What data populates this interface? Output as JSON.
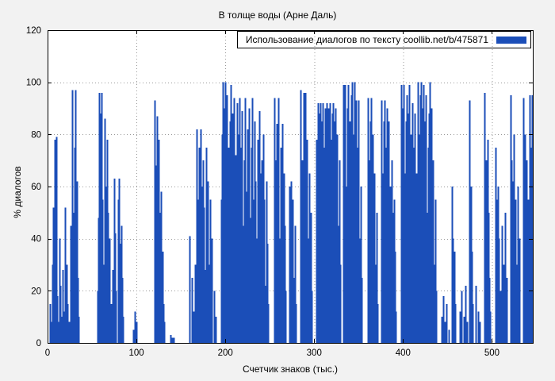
{
  "chart_data": {
    "type": "bar",
    "title": "В толще воды (Арне Даль)",
    "xlabel": "Счетчик знаков (тыс.)",
    "ylabel": "% диалогов",
    "legend": {
      "label": "Использование диалогов по тексту  coollib.net/b/475871",
      "position": "top-right"
    },
    "xlim": [
      0,
      546
    ],
    "ylim": [
      0,
      120
    ],
    "xticks": [
      0,
      100,
      200,
      300,
      400,
      500
    ],
    "yticks": [
      0,
      20,
      40,
      60,
      80,
      100,
      120
    ],
    "grid": true,
    "colors": {
      "bar": "#1b4eb8",
      "grid": "#999999",
      "background": "#f2f2f2",
      "plot_background": "#ffffff",
      "border": "#000000"
    },
    "points": [
      [
        3,
        15
      ],
      [
        4,
        8
      ],
      [
        5,
        30
      ],
      [
        6,
        52
      ],
      [
        7,
        20
      ],
      [
        8,
        78
      ],
      [
        9,
        35
      ],
      [
        10,
        79
      ],
      [
        11,
        18
      ],
      [
        12,
        8
      ],
      [
        13,
        40
      ],
      [
        14,
        22
      ],
      [
        15,
        10
      ],
      [
        17,
        28
      ],
      [
        19,
        12
      ],
      [
        20,
        52
      ],
      [
        21,
        30
      ],
      [
        22,
        15
      ],
      [
        24,
        8
      ],
      [
        26,
        45
      ],
      [
        27,
        20
      ],
      [
        28,
        97
      ],
      [
        29,
        50
      ],
      [
        30,
        75
      ],
      [
        31,
        97
      ],
      [
        32,
        40
      ],
      [
        33,
        62
      ],
      [
        34,
        25
      ],
      [
        35,
        10
      ],
      [
        56,
        20
      ],
      [
        57,
        48
      ],
      [
        58,
        96
      ],
      [
        59,
        70
      ],
      [
        60,
        88
      ],
      [
        61,
        96
      ],
      [
        62,
        55
      ],
      [
        63,
        30
      ],
      [
        64,
        86
      ],
      [
        65,
        60
      ],
      [
        66,
        35
      ],
      [
        67,
        78
      ],
      [
        68,
        50
      ],
      [
        69,
        22
      ],
      [
        70,
        40
      ],
      [
        71,
        15
      ],
      [
        73,
        28
      ],
      [
        75,
        63
      ],
      [
        76,
        42
      ],
      [
        77,
        20
      ],
      [
        79,
        55
      ],
      [
        80,
        63
      ],
      [
        81,
        38
      ],
      [
        82,
        18
      ],
      [
        83,
        45
      ],
      [
        84,
        25
      ],
      [
        85,
        10
      ],
      [
        96,
        5
      ],
      [
        98,
        12
      ],
      [
        100,
        8
      ],
      [
        120,
        93
      ],
      [
        121,
        68
      ],
      [
        122,
        45
      ],
      [
        123,
        87
      ],
      [
        124,
        62
      ],
      [
        125,
        78
      ],
      [
        126,
        50
      ],
      [
        127,
        30
      ],
      [
        128,
        58
      ],
      [
        129,
        35
      ],
      [
        130,
        15
      ],
      [
        131,
        8
      ],
      [
        138,
        3
      ],
      [
        140,
        2
      ],
      [
        142,
        2
      ],
      [
        160,
        41
      ],
      [
        162,
        25
      ],
      [
        164,
        12
      ],
      [
        166,
        30
      ],
      [
        168,
        82
      ],
      [
        169,
        55
      ],
      [
        170,
        75
      ],
      [
        171,
        45
      ],
      [
        172,
        82
      ],
      [
        173,
        60
      ],
      [
        174,
        35
      ],
      [
        175,
        70
      ],
      [
        176,
        52
      ],
      [
        177,
        28
      ],
      [
        178,
        75
      ],
      [
        179,
        48
      ],
      [
        180,
        62
      ],
      [
        181,
        30
      ],
      [
        183,
        55
      ],
      [
        185,
        40
      ],
      [
        187,
        20
      ],
      [
        189,
        10
      ],
      [
        195,
        55
      ],
      [
        196,
        80
      ],
      [
        197,
        100
      ],
      [
        198,
        70
      ],
      [
        199,
        90
      ],
      [
        200,
        100
      ],
      [
        201,
        60
      ],
      [
        202,
        95
      ],
      [
        203,
        75
      ],
      [
        204,
        45
      ],
      [
        205,
        85
      ],
      [
        206,
        99
      ],
      [
        207,
        65
      ],
      [
        208,
        88
      ],
      [
        209,
        50
      ],
      [
        210,
        94
      ],
      [
        211,
        72
      ],
      [
        212,
        40
      ],
      [
        213,
        92
      ],
      [
        214,
        60
      ],
      [
        215,
        80
      ],
      [
        216,
        94
      ],
      [
        217,
        55
      ],
      [
        218,
        75
      ],
      [
        219,
        89
      ],
      [
        220,
        45
      ],
      [
        221,
        70
      ],
      [
        222,
        94
      ],
      [
        223,
        58
      ],
      [
        224,
        35
      ],
      [
        225,
        82
      ],
      [
        226,
        60
      ],
      [
        227,
        90
      ],
      [
        228,
        48
      ],
      [
        229,
        75
      ],
      [
        230,
        94
      ],
      [
        231,
        55
      ],
      [
        232,
        30
      ],
      [
        233,
        85
      ],
      [
        234,
        62
      ],
      [
        235,
        40
      ],
      [
        236,
        78
      ],
      [
        237,
        50
      ],
      [
        238,
        89
      ],
      [
        239,
        65
      ],
      [
        240,
        28
      ],
      [
        241,
        70
      ],
      [
        242,
        45
      ],
      [
        243,
        80
      ],
      [
        244,
        55
      ],
      [
        245,
        22
      ],
      [
        246,
        62
      ],
      [
        247,
        38
      ],
      [
        248,
        15
      ],
      [
        255,
        94
      ],
      [
        256,
        70
      ],
      [
        257,
        50
      ],
      [
        258,
        84
      ],
      [
        259,
        60
      ],
      [
        260,
        94
      ],
      [
        261,
        40
      ],
      [
        262,
        75
      ],
      [
        263,
        55
      ],
      [
        264,
        84
      ],
      [
        265,
        30
      ],
      [
        266,
        65
      ],
      [
        267,
        45
      ],
      [
        268,
        20
      ],
      [
        272,
        60
      ],
      [
        273,
        40
      ],
      [
        274,
        62
      ],
      [
        275,
        35
      ],
      [
        276,
        55
      ],
      [
        277,
        25
      ],
      [
        278,
        45
      ],
      [
        279,
        15
      ],
      [
        285,
        97
      ],
      [
        286,
        70
      ],
      [
        287,
        50
      ],
      [
        288,
        96
      ],
      [
        289,
        75
      ],
      [
        290,
        96
      ],
      [
        291,
        55
      ],
      [
        292,
        78
      ],
      [
        293,
        40
      ],
      [
        294,
        65
      ],
      [
        295,
        30
      ],
      [
        296,
        50
      ],
      [
        297,
        20
      ],
      [
        302,
        78
      ],
      [
        303,
        55
      ],
      [
        304,
        92
      ],
      [
        305,
        70
      ],
      [
        306,
        88
      ],
      [
        307,
        92
      ],
      [
        308,
        60
      ],
      [
        309,
        85
      ],
      [
        310,
        92
      ],
      [
        311,
        75
      ],
      [
        312,
        90
      ],
      [
        313,
        88
      ],
      [
        314,
        92
      ],
      [
        315,
        80
      ],
      [
        316,
        90
      ],
      [
        317,
        85
      ],
      [
        318,
        92
      ],
      [
        319,
        78
      ],
      [
        320,
        88
      ],
      [
        321,
        92
      ],
      [
        322,
        70
      ],
      [
        323,
        85
      ],
      [
        324,
        90
      ],
      [
        325,
        60
      ],
      [
        326,
        80
      ],
      [
        327,
        45
      ],
      [
        328,
        70
      ],
      [
        329,
        30
      ],
      [
        333,
        99
      ],
      [
        334,
        75
      ],
      [
        335,
        99
      ],
      [
        336,
        60
      ],
      [
        337,
        90
      ],
      [
        338,
        99
      ],
      [
        339,
        70
      ],
      [
        340,
        85
      ],
      [
        341,
        55
      ],
      [
        342,
        95
      ],
      [
        343,
        100
      ],
      [
        344,
        80
      ],
      [
        345,
        100
      ],
      [
        346,
        65
      ],
      [
        347,
        93
      ],
      [
        348,
        50
      ],
      [
        349,
        75
      ],
      [
        350,
        93
      ],
      [
        351,
        40
      ],
      [
        352,
        60
      ],
      [
        353,
        25
      ],
      [
        360,
        94
      ],
      [
        361,
        70
      ],
      [
        362,
        50
      ],
      [
        363,
        85
      ],
      [
        364,
        94
      ],
      [
        365,
        60
      ],
      [
        366,
        80
      ],
      [
        367,
        40
      ],
      [
        368,
        65
      ],
      [
        369,
        30
      ],
      [
        370,
        50
      ],
      [
        371,
        15
      ],
      [
        376,
        93
      ],
      [
        377,
        65
      ],
      [
        378,
        85
      ],
      [
        379,
        93
      ],
      [
        380,
        55
      ],
      [
        381,
        75
      ],
      [
        382,
        90
      ],
      [
        383,
        45
      ],
      [
        384,
        85
      ],
      [
        385,
        60
      ],
      [
        386,
        30
      ],
      [
        387,
        70
      ],
      [
        388,
        50
      ],
      [
        389,
        20
      ],
      [
        390,
        55
      ],
      [
        391,
        35
      ],
      [
        392,
        12
      ],
      [
        398,
        99
      ],
      [
        399,
        75
      ],
      [
        400,
        90
      ],
      [
        401,
        99
      ],
      [
        402,
        65
      ],
      [
        403,
        85
      ],
      [
        404,
        95
      ],
      [
        405,
        70
      ],
      [
        406,
        88
      ],
      [
        407,
        99
      ],
      [
        408,
        60
      ],
      [
        409,
        80
      ],
      [
        410,
        92
      ],
      [
        411,
        50
      ],
      [
        412,
        75
      ],
      [
        413,
        88
      ],
      [
        414,
        40
      ],
      [
        415,
        65
      ],
      [
        417,
        100
      ],
      [
        418,
        80
      ],
      [
        419,
        95
      ],
      [
        420,
        100
      ],
      [
        421,
        70
      ],
      [
        422,
        90
      ],
      [
        423,
        99
      ],
      [
        424,
        60
      ],
      [
        425,
        85
      ],
      [
        426,
        95
      ],
      [
        427,
        50
      ],
      [
        428,
        75
      ],
      [
        429,
        88
      ],
      [
        430,
        100
      ],
      [
        431,
        65
      ],
      [
        432,
        90
      ],
      [
        433,
        45
      ],
      [
        434,
        70
      ],
      [
        435,
        30
      ],
      [
        436,
        55
      ],
      [
        437,
        20
      ],
      [
        443,
        10
      ],
      [
        445,
        18
      ],
      [
        447,
        8
      ],
      [
        449,
        15
      ],
      [
        451,
        5
      ],
      [
        455,
        60
      ],
      [
        456,
        40
      ],
      [
        457,
        25
      ],
      [
        458,
        35
      ],
      [
        459,
        15
      ],
      [
        464,
        12
      ],
      [
        466,
        20
      ],
      [
        468,
        10
      ],
      [
        470,
        22
      ],
      [
        472,
        8
      ],
      [
        475,
        93
      ],
      [
        476,
        60
      ],
      [
        477,
        35
      ],
      [
        478,
        15
      ],
      [
        482,
        22
      ],
      [
        484,
        12
      ],
      [
        486,
        8
      ],
      [
        492,
        96
      ],
      [
        493,
        70
      ],
      [
        494,
        45
      ],
      [
        495,
        78
      ],
      [
        496,
        50
      ],
      [
        497,
        25
      ],
      [
        498,
        12
      ],
      [
        504,
        75
      ],
      [
        505,
        55
      ],
      [
        506,
        35
      ],
      [
        507,
        60
      ],
      [
        508,
        40
      ],
      [
        509,
        20
      ],
      [
        511,
        45
      ],
      [
        513,
        30
      ],
      [
        515,
        50
      ],
      [
        517,
        25
      ],
      [
        521,
        95
      ],
      [
        522,
        70
      ],
      [
        523,
        45
      ],
      [
        524,
        62
      ],
      [
        525,
        80
      ],
      [
        526,
        55
      ],
      [
        527,
        30
      ],
      [
        529,
        60
      ],
      [
        531,
        40
      ],
      [
        535,
        94
      ],
      [
        536,
        65
      ],
      [
        537,
        80
      ],
      [
        538,
        45
      ],
      [
        539,
        70
      ],
      [
        540,
        30
      ],
      [
        541,
        55
      ],
      [
        542,
        95
      ],
      [
        543,
        75
      ],
      [
        544,
        50
      ],
      [
        545,
        95
      ]
    ]
  }
}
